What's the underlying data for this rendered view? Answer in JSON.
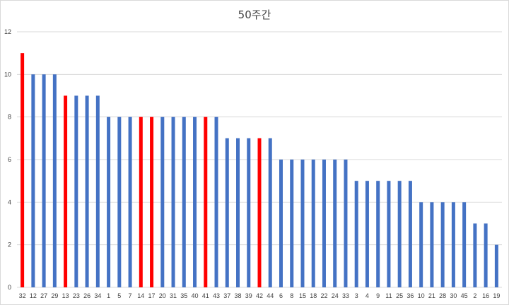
{
  "chart_data": {
    "type": "bar",
    "title": "50주간",
    "xlabel": "",
    "ylabel": "",
    "ylim": [
      0,
      12
    ],
    "yticks": [
      0,
      2,
      4,
      6,
      8,
      10,
      12
    ],
    "grid": true,
    "legend": "none",
    "categories": [
      "32",
      "12",
      "27",
      "29",
      "13",
      "23",
      "26",
      "34",
      "1",
      "5",
      "7",
      "14",
      "17",
      "20",
      "31",
      "35",
      "40",
      "41",
      "43",
      "37",
      "38",
      "39",
      "42",
      "44",
      "6",
      "8",
      "15",
      "18",
      "22",
      "24",
      "33",
      "3",
      "4",
      "9",
      "11",
      "25",
      "36",
      "10",
      "21",
      "28",
      "30",
      "45",
      "2",
      "16",
      "19"
    ],
    "values": [
      11,
      10,
      10,
      10,
      9,
      9,
      9,
      9,
      8,
      8,
      8,
      8,
      8,
      8,
      8,
      8,
      8,
      8,
      8,
      7,
      7,
      7,
      7,
      7,
      6,
      6,
      6,
      6,
      6,
      6,
      6,
      5,
      5,
      5,
      5,
      5,
      5,
      4,
      4,
      4,
      4,
      4,
      3,
      3,
      2
    ],
    "highlighted": [
      "32",
      "13",
      "14",
      "17",
      "41",
      "42"
    ],
    "colors": {
      "bar": "#4472c4",
      "highlight": "#ff0000",
      "grid": "#d9d9d9",
      "text": "#404040"
    }
  }
}
